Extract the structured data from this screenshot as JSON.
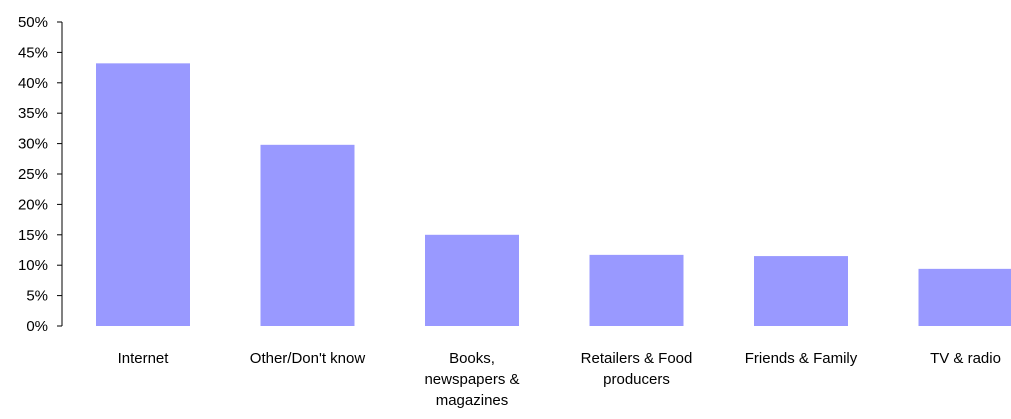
{
  "chart_data": {
    "type": "bar",
    "categories": [
      "Internet",
      "Other/Don't know",
      "Books, newspapers & magazines",
      "Retailers & Food producers",
      "Friends & Family",
      "TV & radio"
    ],
    "values": [
      43.2,
      29.8,
      15.0,
      11.7,
      11.5,
      9.4
    ],
    "color": "#9999ff",
    "ylim": [
      0,
      50
    ],
    "yticks": [
      {
        "value": 0,
        "label": "0%"
      },
      {
        "value": 5,
        "label": "5%"
      },
      {
        "value": 10,
        "label": "10%"
      },
      {
        "value": 15,
        "label": "15%"
      },
      {
        "value": 20,
        "label": "20%"
      },
      {
        "value": 25,
        "label": "25%"
      },
      {
        "value": 30,
        "label": "30%"
      },
      {
        "value": 35,
        "label": "35%"
      },
      {
        "value": 40,
        "label": "40%"
      },
      {
        "value": 45,
        "label": "45%"
      },
      {
        "value": 50,
        "label": "50%"
      }
    ],
    "grid": false
  }
}
